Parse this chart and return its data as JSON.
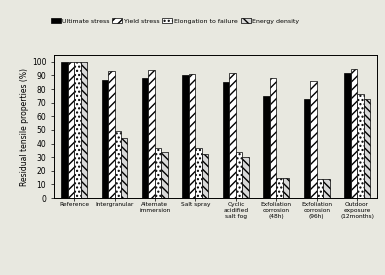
{
  "categories": [
    "Reference",
    "Intergranular",
    "Alternate\nimmersion",
    "Salt spray",
    "Cyclic\nacidified\nsalt fog",
    "Exfoliation\ncorrosion\n(48h)",
    "Exfoliation\ncorrosion\n(96h)",
    "Outdoor\nexposure\n(12months)"
  ],
  "ultimate_stress": [
    100,
    87,
    88,
    90,
    85,
    75,
    73,
    92
  ],
  "yield_stress": [
    100,
    93,
    94,
    91,
    92,
    88,
    86,
    95
  ],
  "elongation": [
    100,
    49,
    37,
    37,
    34,
    15,
    14,
    76
  ],
  "energy_density": [
    100,
    44,
    34,
    32,
    30,
    15,
    14,
    73
  ],
  "ylabel": "Residual tensile properties (%)",
  "ylim": [
    0,
    105
  ],
  "yticks": [
    0,
    10,
    20,
    30,
    40,
    50,
    60,
    70,
    80,
    90,
    100
  ],
  "legend_labels": [
    "Ultimate stress",
    "Yield stress",
    "Elongation to failure",
    "Energy density"
  ],
  "bar_colors": [
    "#000000",
    "#ffffff",
    "#ffffff",
    "#d8d8d8"
  ],
  "hatches": [
    "",
    "////",
    "....",
    "\\\\\\\\"
  ],
  "background": "#e8e8e0"
}
